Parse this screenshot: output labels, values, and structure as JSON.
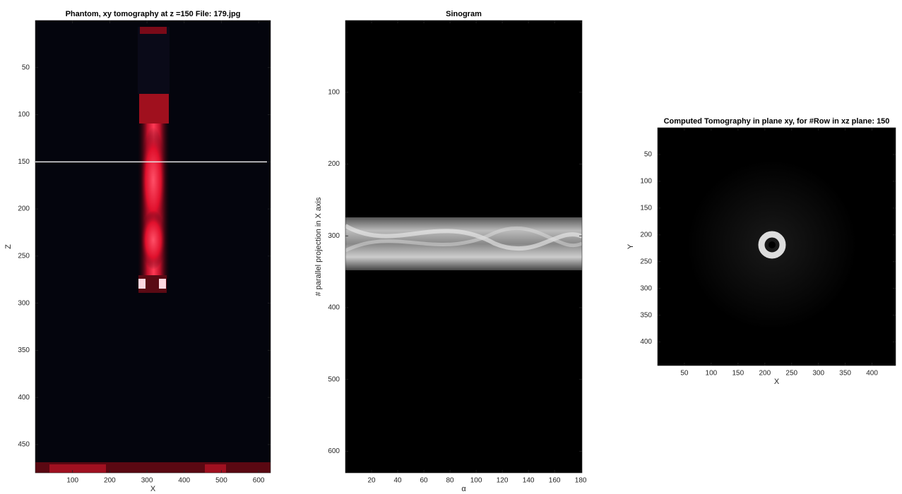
{
  "chart_data": [
    {
      "type": "image",
      "title": "Phantom, xy tomography at z =150  File: 179.jpg",
      "xlabel": "X",
      "ylabel": "Z",
      "xlim": [
        0,
        632
      ],
      "ylim": [
        0,
        480
      ],
      "y_reversed": true,
      "xticks": [
        100,
        200,
        300,
        400,
        500,
        600
      ],
      "yticks": [
        50,
        100,
        150,
        200,
        250,
        300,
        350,
        400,
        450
      ],
      "hline": 150
    },
    {
      "type": "image",
      "title": "Sinogram",
      "xlabel": "α",
      "ylabel": "# parallel projection in X axis",
      "xlim": [
        0,
        181
      ],
      "ylim": [
        0,
        630
      ],
      "y_reversed": true,
      "xticks": [
        20,
        40,
        60,
        80,
        100,
        120,
        140,
        160,
        180
      ],
      "yticks": [
        100,
        200,
        300,
        400,
        500,
        600
      ]
    },
    {
      "type": "image",
      "title": "Computed Tomography in plane xy, for #Row in xz plane: 150",
      "xlabel": "X",
      "ylabel": "Y",
      "xlim": [
        0,
        444
      ],
      "ylim": [
        0,
        444
      ],
      "y_reversed": true,
      "xticks": [
        50,
        100,
        150,
        200,
        250,
        300,
        350,
        400
      ],
      "yticks": [
        50,
        100,
        150,
        200,
        250,
        300,
        350,
        400
      ]
    }
  ]
}
